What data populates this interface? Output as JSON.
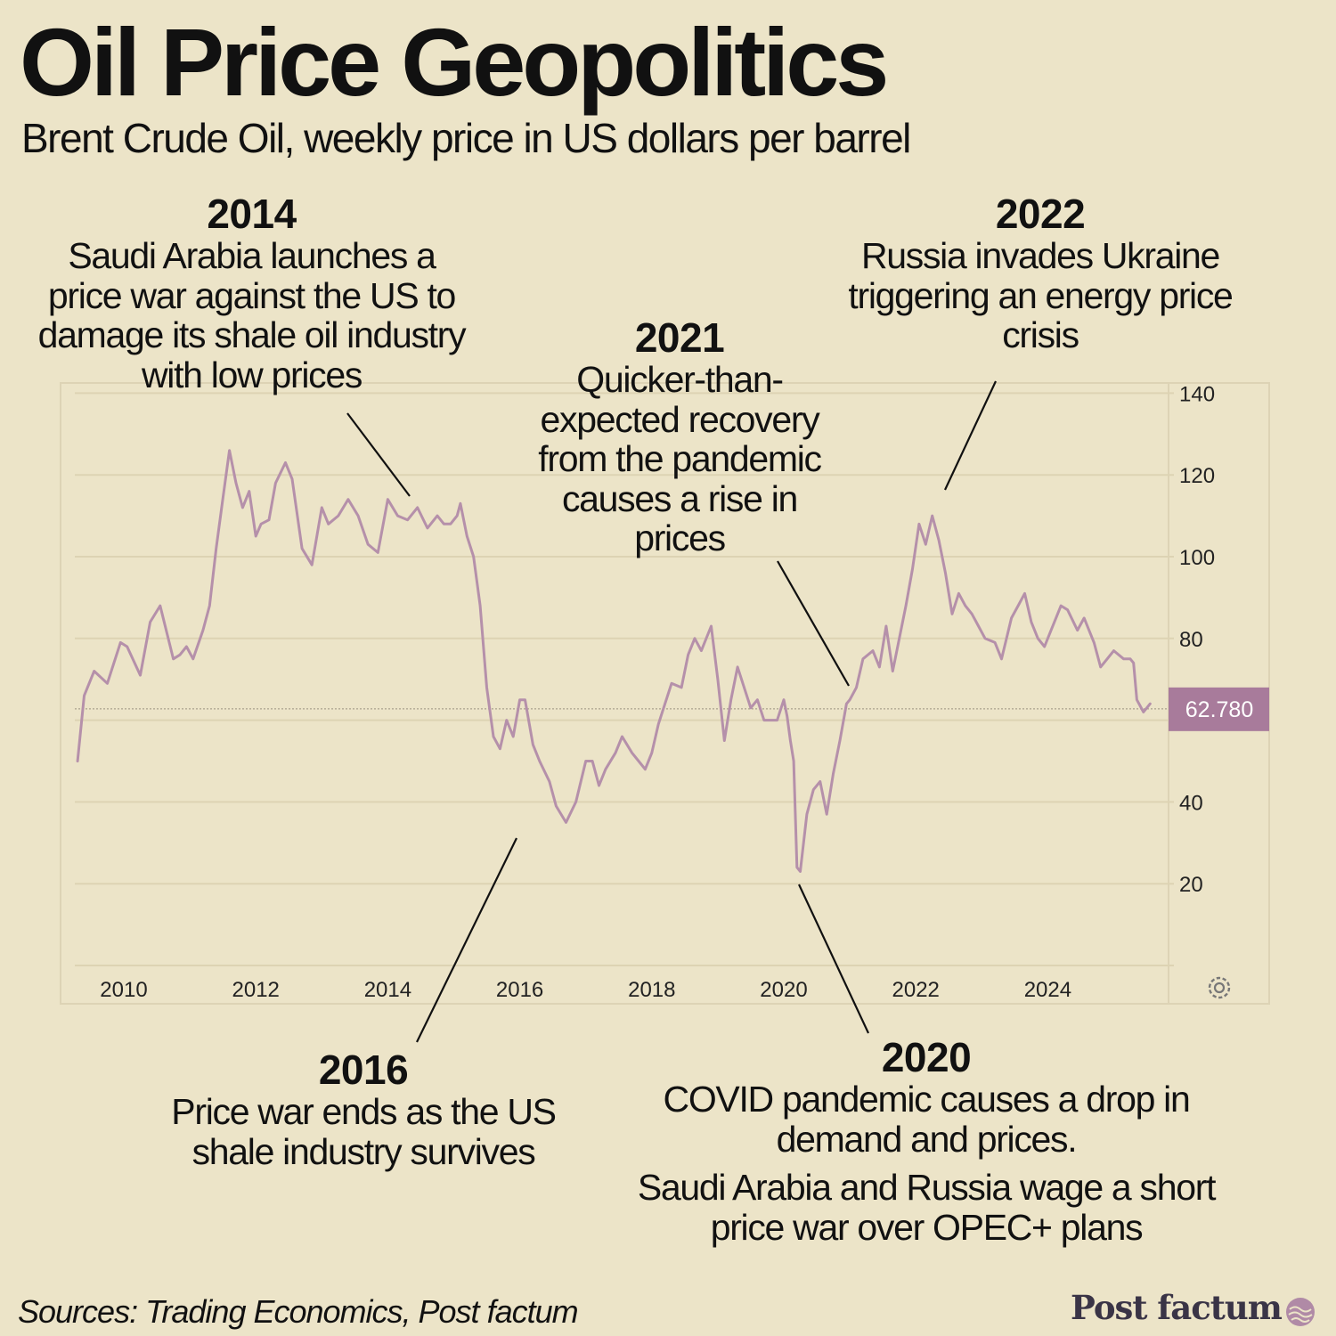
{
  "title": "Oil Price Geopolitics",
  "subtitle": "Brent Crude Oil, weekly price in US dollars per barrel",
  "annotations": {
    "a2014": {
      "year": "2014",
      "text": "Saudi Arabia launches a price war against the US to damage its shale oil industry with low prices"
    },
    "a2021": {
      "year": "2021",
      "text": "Quicker-than-expected recovery from the pandemic causes a rise in prices"
    },
    "a2022": {
      "year": "2022",
      "text": "Russia invades Ukraine triggering an energy price crisis"
    },
    "a2016": {
      "year": "2016",
      "text": "Price war ends as the US shale industry survives"
    },
    "a2020": {
      "year": "2020",
      "text": "COVID pandemic causes a drop in demand and prices.",
      "extra": "Saudi Arabia and Russia wage a short price war over OPEC+ plans"
    }
  },
  "sources": "Sources: Trading Economics, Post factum",
  "brand": "Post factum",
  "colors": {
    "background": "#ece4c8",
    "line": "#b590aa",
    "price_tag": "#a87b9b",
    "grid": "#ddd3b3",
    "text": "#111111"
  },
  "chart_data": {
    "type": "line",
    "title": "Brent Crude Oil, weekly price in US dollars per barrel",
    "xlabel": "",
    "ylabel": "",
    "xlim": [
      2009.3,
      2025.8
    ],
    "ylim": [
      0,
      140
    ],
    "x_ticks": [
      2010,
      2012,
      2014,
      2016,
      2018,
      2020,
      2022,
      2024
    ],
    "y_ticks": [
      20,
      40,
      60,
      80,
      100,
      120,
      140
    ],
    "y_tick_labels": [
      "20",
      "40",
      "80",
      "100",
      "120",
      "140"
    ],
    "current_value": 62.78,
    "current_label": "62.780",
    "grid": true,
    "series": [
      {
        "name": "Brent Crude Oil",
        "x": [
          2009.3,
          2009.4,
          2009.55,
          2009.75,
          2009.95,
          2010.05,
          2010.25,
          2010.4,
          2010.55,
          2010.75,
          2010.85,
          2010.95,
          2011.05,
          2011.2,
          2011.3,
          2011.4,
          2011.5,
          2011.6,
          2011.7,
          2011.8,
          2011.9,
          2012.0,
          2012.08,
          2012.2,
          2012.3,
          2012.45,
          2012.55,
          2012.7,
          2012.85,
          2013.0,
          2013.1,
          2013.25,
          2013.4,
          2013.55,
          2013.7,
          2013.85,
          2014.0,
          2014.15,
          2014.3,
          2014.45,
          2014.6,
          2014.75,
          2014.85,
          2014.95,
          2015.05,
          2015.1,
          2015.2,
          2015.3,
          2015.4,
          2015.5,
          2015.6,
          2015.7,
          2015.8,
          2015.9,
          2016.0,
          2016.08,
          2016.2,
          2016.3,
          2016.45,
          2016.55,
          2016.7,
          2016.85,
          2017.0,
          2017.1,
          2017.2,
          2017.3,
          2017.45,
          2017.55,
          2017.7,
          2017.8,
          2017.9,
          2018.0,
          2018.1,
          2018.2,
          2018.3,
          2018.45,
          2018.55,
          2018.65,
          2018.75,
          2018.9,
          2019.0,
          2019.1,
          2019.2,
          2019.3,
          2019.4,
          2019.5,
          2019.6,
          2019.7,
          2019.8,
          2019.9,
          2020.0,
          2020.05,
          2020.1,
          2020.15,
          2020.2,
          2020.25,
          2020.3,
          2020.35,
          2020.45,
          2020.55,
          2020.65,
          2020.75,
          2020.85,
          2020.95,
          2021.0,
          2021.1,
          2021.2,
          2021.35,
          2021.45,
          2021.55,
          2021.65,
          2021.75,
          2021.85,
          2021.95,
          2022.05,
          2022.15,
          2022.25,
          2022.35,
          2022.45,
          2022.55,
          2022.65,
          2022.75,
          2022.85,
          2022.95,
          2023.05,
          2023.2,
          2023.3,
          2023.45,
          2023.55,
          2023.65,
          2023.75,
          2023.85,
          2023.95,
          2024.05,
          2024.2,
          2024.3,
          2024.45,
          2024.55,
          2024.7,
          2024.8,
          2024.9,
          2025.0,
          2025.15,
          2025.25,
          2025.3,
          2025.35,
          2025.45,
          2025.55
        ],
        "values": [
          50,
          66,
          72,
          69,
          79,
          78,
          71,
          84,
          88,
          75,
          76,
          78,
          75,
          82,
          88,
          102,
          114,
          126,
          118,
          112,
          116,
          105,
          108,
          109,
          118,
          123,
          119,
          102,
          98,
          112,
          108,
          110,
          114,
          110,
          103,
          101,
          114,
          110,
          109,
          112,
          107,
          110,
          108,
          108,
          110,
          113,
          105,
          100,
          88,
          68,
          56,
          53,
          60,
          56,
          65,
          65,
          54,
          50,
          45,
          39,
          35,
          40,
          50,
          50,
          44,
          48,
          52,
          56,
          52,
          50,
          48,
          52,
          59,
          64,
          69,
          68,
          76,
          80,
          77,
          83,
          70,
          55,
          65,
          73,
          68,
          63,
          65,
          60,
          60,
          60,
          65,
          61,
          55,
          50,
          24,
          23,
          30,
          37,
          43,
          45,
          37,
          47,
          55,
          64,
          65,
          68,
          75,
          77,
          73,
          83,
          72,
          80,
          88,
          97,
          108,
          103,
          110,
          104,
          96,
          86,
          91,
          88,
          86,
          83,
          80,
          79,
          75,
          85,
          88,
          91,
          84,
          80,
          78,
          82,
          88,
          87,
          82,
          85,
          79,
          73,
          75,
          77,
          75,
          75,
          74,
          65,
          62,
          64
        ]
      }
    ]
  }
}
